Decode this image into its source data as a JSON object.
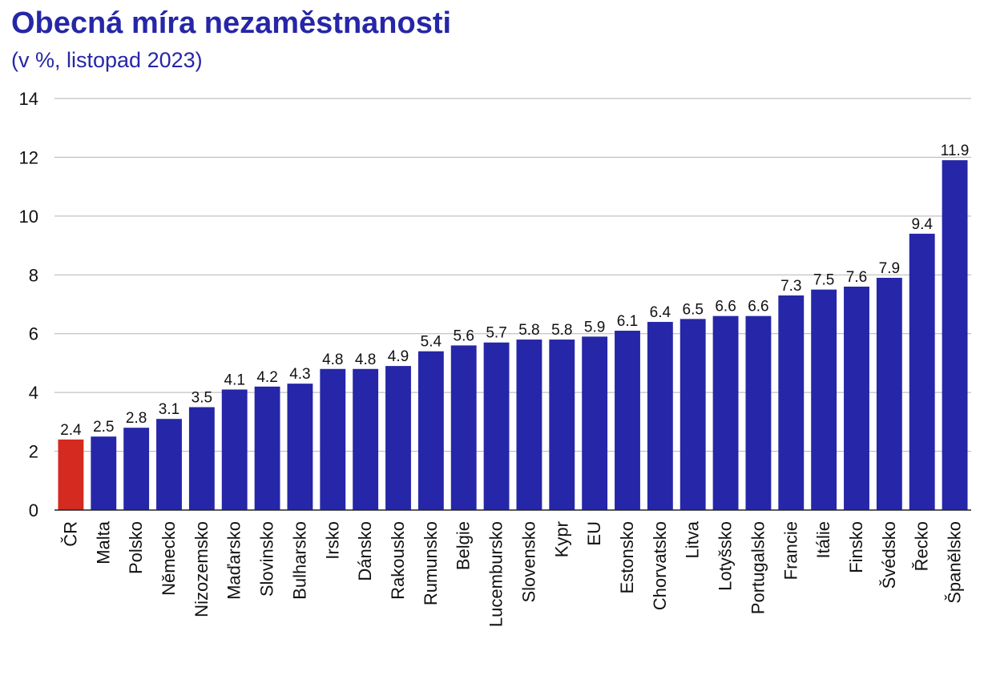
{
  "chart_data": {
    "type": "bar",
    "title": "Obecná míra nezaměstnanosti",
    "subtitle": "(v %, listopad 2023)",
    "xlabel": "",
    "ylabel": "",
    "ylim": [
      0,
      14
    ],
    "yticks": [
      0,
      2,
      4,
      6,
      8,
      10,
      12,
      14
    ],
    "grid": true,
    "legend": "none",
    "colors": {
      "default": "#2626a8",
      "highlight": "#d42a20"
    },
    "highlight_category": "ČR",
    "categories": [
      "ČR",
      "Malta",
      "Polsko",
      "Německo",
      "Nizozemsko",
      "Maďarsko",
      "Slovinsko",
      "Bulharsko",
      "Irsko",
      "Dánsko",
      "Rakousko",
      "Rumunsko",
      "Belgie",
      "Lucembursko",
      "Slovensko",
      "Kypr",
      "EU",
      "Estonsko",
      "Chorvatsko",
      "Litva",
      "Lotyšsko",
      "Portugalsko",
      "Francie",
      "Itálie",
      "Finsko",
      "Švédsko",
      "Řecko",
      "Španělsko"
    ],
    "values": [
      2.4,
      2.5,
      2.8,
      3.1,
      3.5,
      4.1,
      4.2,
      4.3,
      4.8,
      4.8,
      4.9,
      5.4,
      5.6,
      5.7,
      5.8,
      5.8,
      5.9,
      6.1,
      6.4,
      6.5,
      6.6,
      6.6,
      7.3,
      7.5,
      7.6,
      7.9,
      9.4,
      11.9
    ]
  }
}
